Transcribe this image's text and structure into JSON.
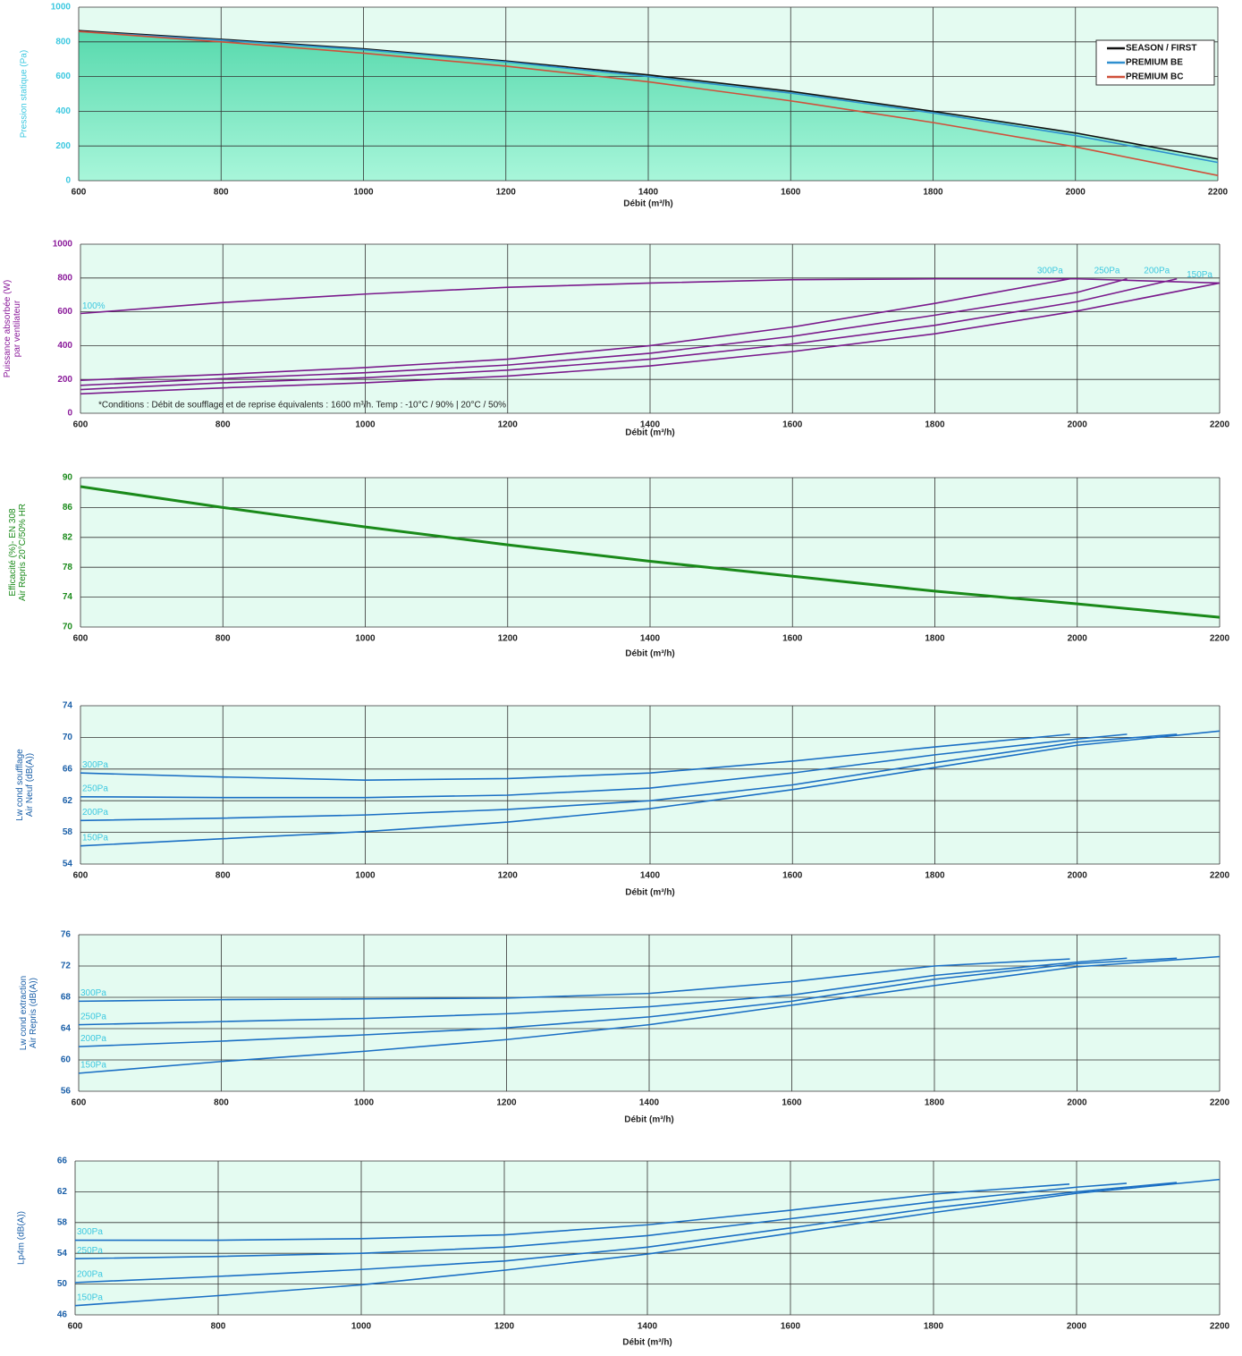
{
  "chart_data": [
    {
      "type": "area-line",
      "ylabel": [
        "Pression statique (Pa)"
      ],
      "xlabel": "Débit (m³/h)",
      "label_color": "#3cc8e0",
      "x": [
        600,
        800,
        1000,
        1200,
        1400,
        1600,
        1800,
        2000,
        2200
      ],
      "xlim": [
        600,
        2200
      ],
      "xticks": [
        600,
        800,
        1000,
        1200,
        1400,
        1600,
        1800,
        2000,
        2200
      ],
      "ylim": [
        0,
        1000
      ],
      "yticks": [
        0,
        200,
        400,
        600,
        800,
        1000
      ],
      "grid": true,
      "legend": "upper right",
      "series": [
        {
          "name": "SEASON / FIRST",
          "color": "#111111",
          "values": [
            865,
            815,
            760,
            690,
            610,
            515,
            400,
            275,
            125
          ]
        },
        {
          "name": "PREMIUM BE",
          "color": "#2f8fcf",
          "values": [
            860,
            810,
            755,
            685,
            600,
            505,
            390,
            260,
            105
          ]
        },
        {
          "name": "PREMIUM BC",
          "color": "#d0503a",
          "values": [
            860,
            800,
            735,
            660,
            570,
            460,
            335,
            195,
            30
          ]
        }
      ]
    },
    {
      "type": "line",
      "ylabel": [
        "Puissance absorbée (W)",
        "par ventilateur"
      ],
      "xlabel": "Débit (m³/h)",
      "label_color": "#8a1a9a",
      "annotation": "*Conditions : Débit de soufflage et de reprise équivalents : 1600 m³/h. Temp : -10°C / 90% | 20°C / 50%",
      "xlim": [
        600,
        2200
      ],
      "xticks": [
        600,
        800,
        1000,
        1200,
        1400,
        1600,
        1800,
        2000,
        2200
      ],
      "ylim": [
        0,
        1000
      ],
      "yticks": [
        0,
        200,
        400,
        600,
        800,
        1000
      ],
      "grid": true,
      "series": [
        {
          "name": "100%",
          "color": "#7a1a8c",
          "x": [
            600,
            800,
            1000,
            1200,
            1400,
            1600,
            1800,
            2000,
            2200
          ],
          "values": [
            590,
            655,
            705,
            745,
            770,
            790,
            795,
            795,
            770
          ]
        },
        {
          "name": "300Pa",
          "color": "#7a1a8c",
          "x": [
            600,
            800,
            1000,
            1200,
            1400,
            1600,
            1800,
            1990
          ],
          "values": [
            195,
            230,
            270,
            320,
            400,
            510,
            650,
            795
          ]
        },
        {
          "name": "250Pa",
          "color": "#7a1a8c",
          "x": [
            600,
            800,
            1000,
            1200,
            1400,
            1600,
            1800,
            2000,
            2070
          ],
          "values": [
            165,
            205,
            240,
            285,
            355,
            455,
            580,
            715,
            795
          ]
        },
        {
          "name": "200Pa",
          "color": "#7a1a8c",
          "x": [
            600,
            800,
            1000,
            1200,
            1400,
            1600,
            1800,
            2000,
            2140
          ],
          "values": [
            140,
            180,
            210,
            255,
            320,
            410,
            520,
            660,
            795
          ]
        },
        {
          "name": "150Pa",
          "color": "#7a1a8c",
          "x": [
            600,
            800,
            1000,
            1200,
            1400,
            1600,
            1800,
            2000,
            2200
          ],
          "values": [
            115,
            150,
            180,
            220,
            280,
            365,
            470,
            605,
            770
          ]
        }
      ]
    },
    {
      "type": "line",
      "ylabel": [
        "Efficacité (%)- EN 308",
        "Air Repris 20°C/50% HR"
      ],
      "xlabel": "Débit (m³/h)",
      "label_color": "#1a8a1a",
      "xlim": [
        600,
        2200
      ],
      "xticks": [
        600,
        800,
        1000,
        1200,
        1400,
        1600,
        1800,
        2000,
        2200
      ],
      "ylim": [
        70,
        90
      ],
      "yticks": [
        70,
        74,
        78,
        82,
        86,
        90
      ],
      "grid": true,
      "x": [
        600,
        800,
        1000,
        1200,
        1400,
        1600,
        1800,
        2000,
        2200
      ],
      "color": "#1a8a1a",
      "values": [
        88.8,
        86,
        83.4,
        81,
        78.8,
        76.8,
        74.8,
        73.1,
        71.3
      ]
    },
    {
      "type": "line",
      "ylabel": [
        "Lw cond soufflage",
        "Air Neuf  (dB(A))"
      ],
      "xlabel": "Débit (m³/h)",
      "label_color": "#1a5fa8",
      "xlim": [
        600,
        2200
      ],
      "xticks": [
        600,
        800,
        1000,
        1200,
        1400,
        1600,
        1800,
        2000,
        2200
      ],
      "ylim": [
        54,
        74
      ],
      "yticks": [
        54,
        58,
        62,
        66,
        70,
        74
      ],
      "grid": true,
      "series": [
        {
          "name": "300Pa",
          "color": "#1a6fc4",
          "x": [
            600,
            800,
            1000,
            1200,
            1400,
            1600,
            1800,
            1990
          ],
          "values": [
            65.5,
            65,
            64.6,
            64.8,
            65.5,
            67,
            68.8,
            70.4
          ]
        },
        {
          "name": "250Pa",
          "color": "#1a6fc4",
          "x": [
            600,
            800,
            1000,
            1200,
            1400,
            1600,
            1800,
            2000,
            2070
          ],
          "values": [
            62.5,
            62.4,
            62.4,
            62.7,
            63.6,
            65.5,
            67.8,
            69.8,
            70.4
          ]
        },
        {
          "name": "200Pa",
          "color": "#1a6fc4",
          "x": [
            600,
            800,
            1000,
            1200,
            1400,
            1600,
            1800,
            2000,
            2140
          ],
          "values": [
            59.5,
            59.8,
            60.2,
            60.9,
            62,
            64,
            66.8,
            69.4,
            70.4
          ]
        },
        {
          "name": "150Pa",
          "color": "#1a6fc4",
          "x": [
            600,
            800,
            1000,
            1200,
            1400,
            1600,
            1800,
            2000,
            2200
          ],
          "values": [
            56.3,
            57.2,
            58.1,
            59.3,
            61,
            63.4,
            66.2,
            69,
            70.8
          ]
        }
      ]
    },
    {
      "type": "line",
      "ylabel": [
        "Lw cond extraction",
        "Air Repris (dB(A))"
      ],
      "xlabel": "Débit (m³/h)",
      "label_color": "#1a5fa8",
      "xlim": [
        600,
        2200
      ],
      "xticks": [
        600,
        800,
        1000,
        1200,
        1400,
        1600,
        1800,
        2000,
        2200
      ],
      "ylim": [
        56,
        76
      ],
      "yticks": [
        56,
        60,
        64,
        68,
        72,
        76
      ],
      "grid": true,
      "series": [
        {
          "name": "300Pa",
          "color": "#1a6fc4",
          "x": [
            600,
            800,
            1000,
            1200,
            1400,
            1600,
            1800,
            1990
          ],
          "values": [
            67.5,
            67.7,
            67.8,
            67.9,
            68.5,
            70,
            72,
            72.9
          ]
        },
        {
          "name": "250Pa",
          "color": "#1a6fc4",
          "x": [
            600,
            800,
            1000,
            1200,
            1400,
            1600,
            1800,
            2000,
            2070
          ],
          "values": [
            64.5,
            64.9,
            65.3,
            65.9,
            66.8,
            68.3,
            70.8,
            72.5,
            73
          ]
        },
        {
          "name": "200Pa",
          "color": "#1a6fc4",
          "x": [
            600,
            800,
            1000,
            1200,
            1400,
            1600,
            1800,
            2000,
            2140
          ],
          "values": [
            61.7,
            62.4,
            63.2,
            64.1,
            65.5,
            67.5,
            70.3,
            72.3,
            73
          ]
        },
        {
          "name": "150Pa",
          "color": "#1a6fc4",
          "x": [
            600,
            800,
            1000,
            1200,
            1400,
            1600,
            1800,
            2000,
            2200
          ],
          "values": [
            58.3,
            59.8,
            61.1,
            62.6,
            64.5,
            67,
            69.5,
            71.9,
            73.2
          ]
        }
      ]
    },
    {
      "type": "line",
      "ylabel": [
        "Lp4m  (dB(A))"
      ],
      "xlabel": "Débit (m³/h)",
      "label_color": "#1a5fa8",
      "xlim": [
        600,
        2200
      ],
      "xticks": [
        600,
        800,
        1000,
        1200,
        1400,
        1600,
        1800,
        2000,
        2200
      ],
      "ylim": [
        46,
        66
      ],
      "yticks": [
        46,
        50,
        54,
        58,
        62,
        66
      ],
      "grid": true,
      "series": [
        {
          "name": "300Pa",
          "color": "#1a6fc4",
          "x": [
            600,
            800,
            1000,
            1200,
            1400,
            1600,
            1800,
            1990
          ],
          "values": [
            55.7,
            55.7,
            55.9,
            56.4,
            57.7,
            59.6,
            61.7,
            63
          ]
        },
        {
          "name": "250Pa",
          "color": "#1a6fc4",
          "x": [
            600,
            800,
            1000,
            1200,
            1400,
            1600,
            1800,
            2000,
            2070
          ],
          "values": [
            53.3,
            53.6,
            54,
            54.8,
            56.3,
            58.5,
            60.7,
            62.6,
            63.1
          ]
        },
        {
          "name": "200Pa",
          "color": "#1a6fc4",
          "x": [
            600,
            800,
            1000,
            1200,
            1400,
            1600,
            1800,
            2000,
            2140
          ],
          "values": [
            50.2,
            51,
            51.9,
            53,
            54.8,
            57.3,
            59.9,
            62,
            63.2
          ]
        },
        {
          "name": "150Pa",
          "color": "#1a6fc4",
          "x": [
            600,
            800,
            1000,
            1200,
            1400,
            1600,
            1800,
            2000,
            2200
          ],
          "values": [
            47.2,
            48.5,
            49.9,
            51.8,
            53.9,
            56.6,
            59.3,
            61.8,
            63.6
          ]
        }
      ]
    }
  ]
}
